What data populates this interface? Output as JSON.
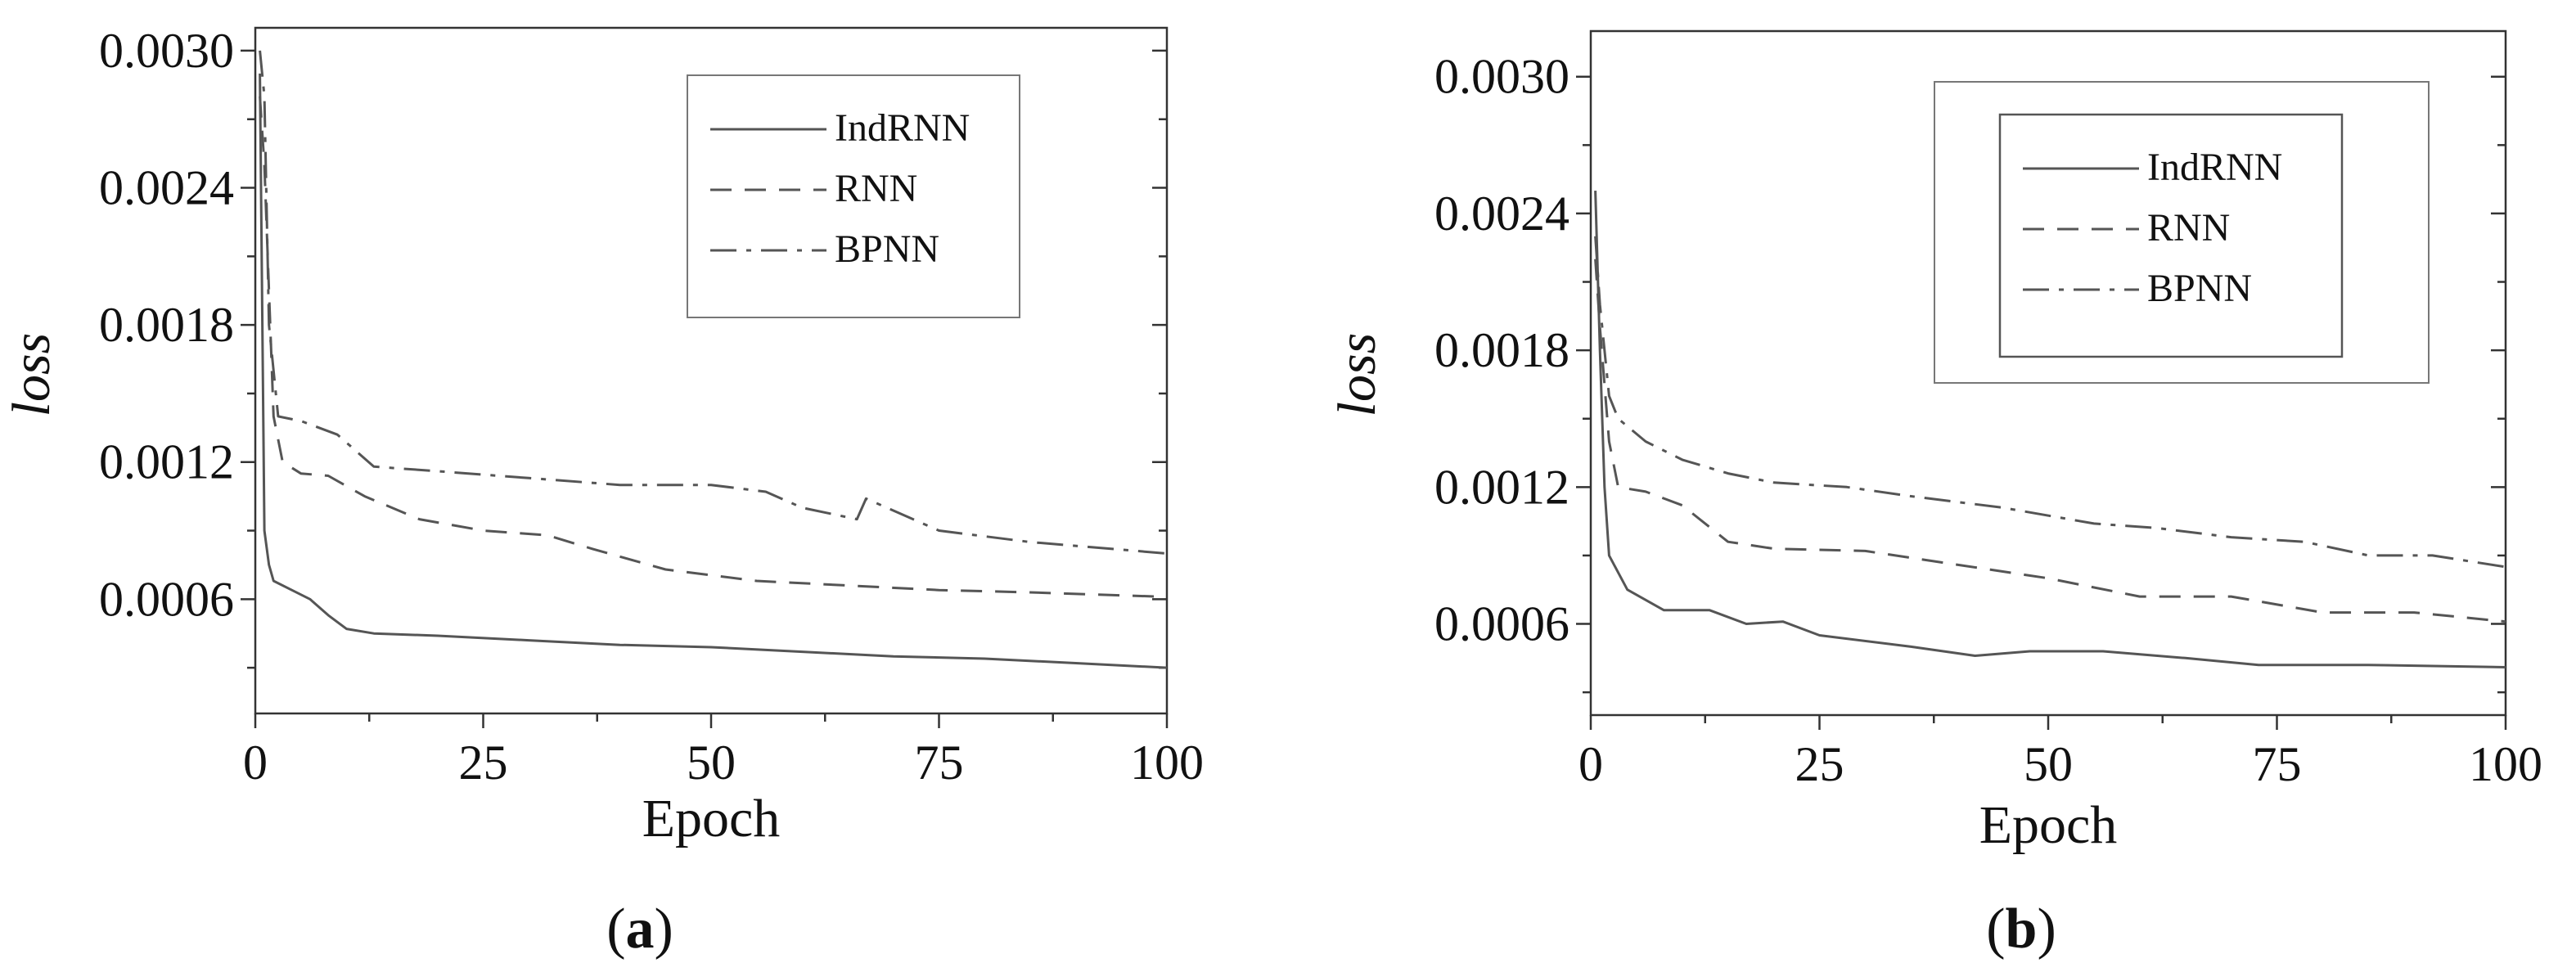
{
  "chart_data": [
    {
      "type": "line",
      "panel_label": "a",
      "xlabel": "Epoch",
      "ylabel": "loss",
      "xlim": [
        0,
        100
      ],
      "ylim": [
        0.0001,
        0.0031
      ],
      "x_ticks": [
        0,
        25,
        50,
        75,
        100
      ],
      "x_tick_labels": [
        "0",
        "25",
        "50",
        "75",
        "100"
      ],
      "y_ticks": [
        0.0006,
        0.0012,
        0.0018,
        0.0024,
        0.003
      ],
      "y_tick_labels": [
        "0.0006",
        "0.0012",
        "0.0018",
        "0.0024",
        "0.0030"
      ],
      "legend": {
        "position": "top-right",
        "nested_box": false
      },
      "series": [
        {
          "name": "IndRNN",
          "style": "solid",
          "color": "#555555",
          "x": [
            0.5,
            1,
            1.5,
            2,
            4,
            6,
            8,
            10,
            13,
            20,
            30,
            40,
            50,
            60,
            70,
            80,
            90,
            100
          ],
          "y": [
            0.0029,
            0.0009,
            0.00075,
            0.00068,
            0.00064,
            0.0006,
            0.00053,
            0.00047,
            0.00045,
            0.00044,
            0.00042,
            0.0004,
            0.00039,
            0.00037,
            0.00035,
            0.00034,
            0.00032,
            0.0003
          ]
        },
        {
          "name": "RNN",
          "style": "dashed",
          "color": "#555555",
          "x": [
            0.5,
            1,
            2,
            3,
            5,
            8,
            12,
            18,
            25,
            32,
            37,
            45,
            55,
            65,
            75,
            85,
            100
          ],
          "y": [
            0.0028,
            0.0025,
            0.0014,
            0.0012,
            0.00115,
            0.00114,
            0.00105,
            0.00095,
            0.0009,
            0.00088,
            0.00082,
            0.00073,
            0.00068,
            0.00066,
            0.00064,
            0.00063,
            0.00061
          ]
        },
        {
          "name": "BPNN",
          "style": "dashdot",
          "color": "#555555",
          "x": [
            0.5,
            1,
            1.5,
            2.5,
            5,
            9,
            13,
            20,
            30,
            40,
            50,
            56,
            60,
            66,
            67,
            75,
            85,
            100
          ],
          "y": [
            0.003,
            0.0028,
            0.0018,
            0.0014,
            0.00138,
            0.00132,
            0.00118,
            0.00116,
            0.00113,
            0.0011,
            0.0011,
            0.00107,
            0.001,
            0.00095,
            0.00104,
            0.0009,
            0.00085,
            0.0008
          ]
        }
      ]
    },
    {
      "type": "line",
      "panel_label": "b",
      "xlabel": "Epoch",
      "ylabel": "loss",
      "xlim": [
        0,
        100
      ],
      "ylim": [
        0.0002,
        0.0032
      ],
      "x_ticks": [
        0,
        25,
        50,
        75,
        100
      ],
      "x_tick_labels": [
        "0",
        "25",
        "50",
        "75",
        "100"
      ],
      "y_ticks": [
        0.0006,
        0.0012,
        0.0018,
        0.0024,
        0.003
      ],
      "y_tick_labels": [
        "0.0006",
        "0.0012",
        "0.0018",
        "0.0024",
        "0.0030"
      ],
      "legend": {
        "position": "top-right",
        "nested_box": true
      },
      "series": [
        {
          "name": "IndRNN",
          "style": "solid",
          "color": "#555555",
          "x": [
            0.5,
            1,
            1.5,
            2,
            4,
            8,
            13,
            17,
            21,
            25,
            35,
            42,
            48,
            56,
            65,
            73,
            85,
            100
          ],
          "y": [
            0.0025,
            0.0018,
            0.0012,
            0.0009,
            0.00075,
            0.00066,
            0.00066,
            0.0006,
            0.00061,
            0.00055,
            0.0005,
            0.00046,
            0.00048,
            0.00048,
            0.00045,
            0.00042,
            0.00042,
            0.00041
          ]
        },
        {
          "name": "RNN",
          "style": "dashed",
          "color": "#555555",
          "x": [
            0.5,
            1,
            2,
            3,
            6,
            10,
            15,
            20,
            30,
            40,
            50,
            60,
            70,
            80,
            90,
            100
          ],
          "y": [
            0.0022,
            0.0019,
            0.0014,
            0.0012,
            0.00118,
            0.00112,
            0.00096,
            0.00093,
            0.00092,
            0.00086,
            0.0008,
            0.00072,
            0.00072,
            0.00065,
            0.00065,
            0.00061
          ]
        },
        {
          "name": "BPNN",
          "style": "dashdot",
          "color": "#555555",
          "x": [
            0.5,
            1,
            2,
            3,
            6,
            10,
            15,
            20,
            28,
            35,
            45,
            55,
            62,
            70,
            78,
            85,
            92,
            100
          ],
          "y": [
            0.0023,
            0.002,
            0.0016,
            0.0015,
            0.0014,
            0.00132,
            0.00126,
            0.00122,
            0.0012,
            0.00116,
            0.00111,
            0.00104,
            0.00102,
            0.00098,
            0.00096,
            0.0009,
            0.0009,
            0.00085
          ]
        }
      ]
    }
  ]
}
